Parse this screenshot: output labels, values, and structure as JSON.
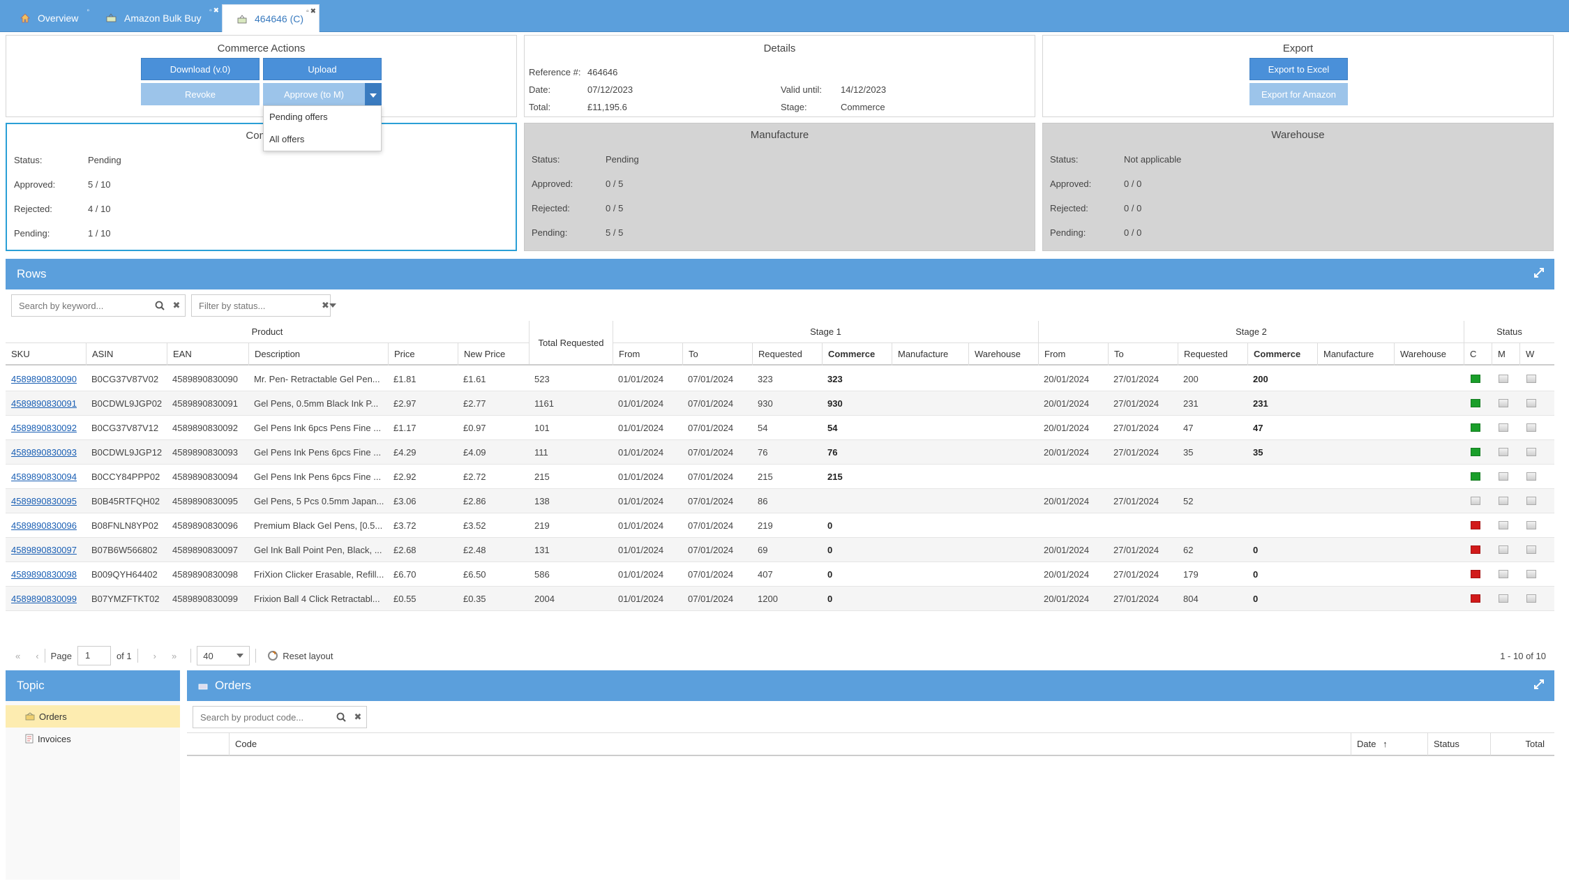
{
  "tabs": [
    {
      "label": "Overview",
      "icon": "home-icon"
    },
    {
      "label": "Amazon Bulk Buy",
      "icon": "amazon-cart-icon"
    },
    {
      "label": "464646 (C)",
      "icon": "document-icon",
      "active": true
    }
  ],
  "commerce_actions": {
    "title": "Commerce Actions",
    "download": "Download (v.0)",
    "upload": "Upload",
    "revoke": "Revoke",
    "approve": "Approve (to M)",
    "menu": [
      "Pending offers",
      "All offers"
    ]
  },
  "details": {
    "title": "Details",
    "reference_label": "Reference #:",
    "reference": "464646",
    "date_label": "Date:",
    "date": "07/12/2023",
    "total_label": "Total:",
    "total": "£11,195.6",
    "valid_label": "Valid until:",
    "valid": "14/12/2023",
    "stage_label": "Stage:",
    "stage": "Commerce"
  },
  "export": {
    "title": "Export",
    "excel": "Export to Excel",
    "amazon": "Export for Amazon"
  },
  "stages": [
    {
      "title": "Comm",
      "status": "Pending",
      "approved": "5 / 10",
      "rejected": "4 / 10",
      "pending": "1 / 10"
    },
    {
      "title": "Manufacture",
      "status": "Pending",
      "approved": "0 / 5",
      "rejected": "0 / 5",
      "pending": "5 / 5"
    },
    {
      "title": "Warehouse",
      "status": "Not applicable",
      "approved": "0 / 0",
      "rejected": "0 / 0",
      "pending": "0 / 0"
    }
  ],
  "stage_labels": {
    "status": "Status:",
    "approved": "Approved:",
    "rejected": "Rejected:",
    "pending": "Pending:"
  },
  "rows_section": {
    "title": "Rows",
    "search_placeholder": "Search by keyword...",
    "filter_placeholder": "Filter by status..."
  },
  "table": {
    "groups": {
      "product": "Product",
      "total_requested": "Total Requested",
      "stage1": "Stage 1",
      "stage2": "Stage 2",
      "status": "Status"
    },
    "columns": [
      "SKU",
      "ASIN",
      "EAN",
      "Description",
      "Price",
      "New Price",
      "From",
      "To",
      "Requested",
      "Commerce",
      "Manufacture",
      "Warehouse",
      "From",
      "To",
      "Requested",
      "Commerce",
      "Manufacture",
      "Warehouse",
      "C",
      "M",
      "W"
    ],
    "rows": [
      {
        "sku": "4589890830090",
        "asin": "B0CG37V87V02",
        "ean": "4589890830090",
        "desc": "Mr. Pen- Retractable Gel Pen...",
        "price": "£1.81",
        "new": "£1.61",
        "total": "523",
        "s1from": "01/01/2024",
        "s1to": "07/01/2024",
        "s1req": "323",
        "s1com": "323",
        "s2from": "20/01/2024",
        "s2to": "27/01/2024",
        "s2req": "200",
        "s2com": "200",
        "c": "green"
      },
      {
        "sku": "4589890830091",
        "asin": "B0CDWL9JGP02",
        "ean": "4589890830091",
        "desc": "Gel Pens, 0.5mm Black Ink P...",
        "price": "£2.97",
        "new": "£2.77",
        "total": "1161",
        "s1from": "01/01/2024",
        "s1to": "07/01/2024",
        "s1req": "930",
        "s1com": "930",
        "s2from": "20/01/2024",
        "s2to": "27/01/2024",
        "s2req": "231",
        "s2com": "231",
        "c": "green"
      },
      {
        "sku": "4589890830092",
        "asin": "B0CG37V87V12",
        "ean": "4589890830092",
        "desc": "Gel Pens Ink 6pcs Pens Fine ...",
        "price": "£1.17",
        "new": "£0.97",
        "total": "101",
        "s1from": "01/01/2024",
        "s1to": "07/01/2024",
        "s1req": "54",
        "s1com": "54",
        "s2from": "20/01/2024",
        "s2to": "27/01/2024",
        "s2req": "47",
        "s2com": "47",
        "c": "green"
      },
      {
        "sku": "4589890830093",
        "asin": "B0CDWL9JGP12",
        "ean": "4589890830093",
        "desc": "Gel Pens Ink Pens 6pcs Fine ...",
        "price": "£4.29",
        "new": "£4.09",
        "total": "111",
        "s1from": "01/01/2024",
        "s1to": "07/01/2024",
        "s1req": "76",
        "s1com": "76",
        "s2from": "20/01/2024",
        "s2to": "27/01/2024",
        "s2req": "35",
        "s2com": "35",
        "c": "green"
      },
      {
        "sku": "4589890830094",
        "asin": "B0CCY84PPP02",
        "ean": "4589890830094",
        "desc": "Gel Pens Ink Pens 6pcs Fine ...",
        "price": "£2.92",
        "new": "£2.72",
        "total": "215",
        "s1from": "01/01/2024",
        "s1to": "07/01/2024",
        "s1req": "215",
        "s1com": "215",
        "s2from": "",
        "s2to": "",
        "s2req": "",
        "s2com": "",
        "c": "green"
      },
      {
        "sku": "4589890830095",
        "asin": "B0B45RTFQH02",
        "ean": "4589890830095",
        "desc": "Gel Pens, 5 Pcs 0.5mm Japan...",
        "price": "£3.06",
        "new": "£2.86",
        "total": "138",
        "s1from": "01/01/2024",
        "s1to": "07/01/2024",
        "s1req": "86",
        "s1com": "",
        "s2from": "20/01/2024",
        "s2to": "27/01/2024",
        "s2req": "52",
        "s2com": "",
        "c": "gray"
      },
      {
        "sku": "4589890830096",
        "asin": "B08FNLN8YP02",
        "ean": "4589890830096",
        "desc": "Premium Black Gel Pens, [0.5...",
        "price": "£3.72",
        "new": "£3.52",
        "total": "219",
        "s1from": "01/01/2024",
        "s1to": "07/01/2024",
        "s1req": "219",
        "s1com": "0",
        "s2from": "",
        "s2to": "",
        "s2req": "",
        "s2com": "",
        "c": "red"
      },
      {
        "sku": "4589890830097",
        "asin": "B07B6W566802",
        "ean": "4589890830097",
        "desc": "Gel Ink Ball Point Pen, Black, ...",
        "price": "£2.68",
        "new": "£2.48",
        "total": "131",
        "s1from": "01/01/2024",
        "s1to": "07/01/2024",
        "s1req": "69",
        "s1com": "0",
        "s2from": "20/01/2024",
        "s2to": "27/01/2024",
        "s2req": "62",
        "s2com": "0",
        "c": "red"
      },
      {
        "sku": "4589890830098",
        "asin": "B009QYH64402",
        "ean": "4589890830098",
        "desc": "FriXion Clicker Erasable, Refill...",
        "price": "£6.70",
        "new": "£6.50",
        "total": "586",
        "s1from": "01/01/2024",
        "s1to": "07/01/2024",
        "s1req": "407",
        "s1com": "0",
        "s2from": "20/01/2024",
        "s2to": "27/01/2024",
        "s2req": "179",
        "s2com": "0",
        "c": "red"
      },
      {
        "sku": "4589890830099",
        "asin": "B07YMZFTKT02",
        "ean": "4589890830099",
        "desc": "Frixion Ball 4 Click Retractabl...",
        "price": "£0.55",
        "new": "£0.35",
        "total": "2004",
        "s1from": "01/01/2024",
        "s1to": "07/01/2024",
        "s1req": "1200",
        "s1com": "0",
        "s2from": "20/01/2024",
        "s2to": "27/01/2024",
        "s2req": "804",
        "s2com": "0",
        "c": "red"
      }
    ]
  },
  "pager": {
    "page_label": "Page",
    "page": "1",
    "of": "of 1",
    "size": "40",
    "reset": "Reset layout",
    "range": "1 - 10 of 10"
  },
  "topic": {
    "title": "Topic",
    "items": [
      "Orders",
      "Invoices"
    ]
  },
  "orders": {
    "title": "Orders",
    "search_placeholder": "Search by product code...",
    "columns": [
      "Code",
      "Date",
      "Status",
      "Total"
    ]
  },
  "colors": {
    "accent": "#5b9fdc",
    "green": "#1a9e2a",
    "red": "#d11a1a",
    "selected_border": "#2a9fd6"
  }
}
